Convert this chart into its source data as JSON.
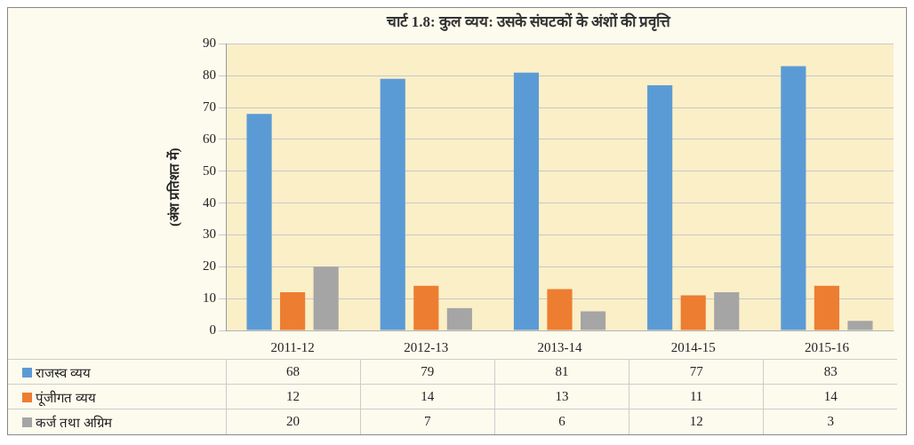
{
  "chart_data": {
    "type": "bar",
    "title": "चार्ट 1.8: कुल व्यय: उसके संघटकों के अंशों की प्रवृत्ति",
    "ylabel": "(अंश प्रतिशत में)",
    "categories": [
      "2011-12",
      "2012-13",
      "2013-14",
      "2014-15",
      "2015-16"
    ],
    "series": [
      {
        "name": "राजस्व व्यय",
        "color": "#5b9bd5",
        "values": [
          68,
          79,
          81,
          77,
          83
        ]
      },
      {
        "name": "पूंजीगत व्यय",
        "color": "#ed7d31",
        "values": [
          12,
          14,
          13,
          11,
          14
        ]
      },
      {
        "name": "कर्ज तथा अग्रिम",
        "color": "#a5a5a5",
        "values": [
          20,
          7,
          6,
          12,
          3
        ]
      }
    ],
    "ylim": [
      0,
      90
    ],
    "yticks": [
      0,
      10,
      20,
      30,
      40,
      50,
      60,
      70,
      80,
      90
    ],
    "grid": "y",
    "legend": "bottom",
    "data_labels": true
  }
}
